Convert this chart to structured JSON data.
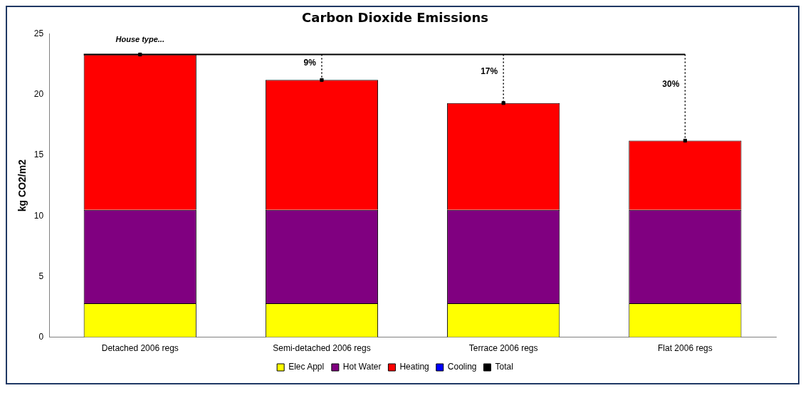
{
  "chart_data": {
    "type": "bar",
    "title": "Carbon Dioxide Emissions",
    "ylabel": "kg CO2/m2",
    "categories": [
      "Detached 2006 regs",
      "Semi-detached 2006 regs",
      "Terrace 2006 regs",
      "Flat 2006 regs"
    ],
    "stacked": true,
    "series": [
      {
        "name": "Elec Appl",
        "color": "#ffff00",
        "values": [
          2.8,
          2.8,
          2.8,
          2.8
        ]
      },
      {
        "name": "Hot Water",
        "color": "#800080",
        "values": [
          7.7,
          7.7,
          7.7,
          7.7
        ]
      },
      {
        "name": "Heating",
        "color": "#ff0000",
        "values": [
          12.8,
          10.7,
          8.8,
          5.7
        ]
      },
      {
        "name": "Cooling",
        "color": "#0000ff",
        "values": [
          0,
          0,
          0,
          0
        ]
      },
      {
        "name": "Total",
        "type": "scatter",
        "color": "#000000",
        "values": [
          23.3,
          21.2,
          19.3,
          16.2
        ],
        "errors": [
          null,
          [
            21.2,
            23.3
          ],
          [
            19.3,
            23.3
          ],
          [
            16.2,
            23.3
          ]
        ]
      }
    ],
    "ylim": [
      0,
      25
    ],
    "yticks": [
      0,
      5,
      10,
      15,
      20,
      25
    ],
    "grid": false,
    "legend": "bottom",
    "ref_lines": [
      {
        "axis": "y",
        "value": 23.3,
        "color": "#000000"
      }
    ],
    "annotations": [
      "House type...",
      "9%",
      "17%",
      "30%"
    ]
  }
}
